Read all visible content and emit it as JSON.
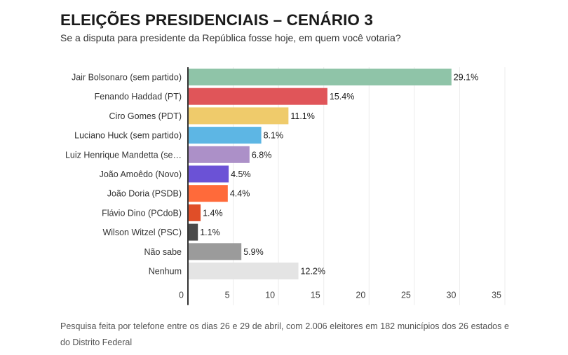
{
  "header": {
    "title": "ELEIÇÕES PRESIDENCIAIS – CENÁRIO 3",
    "subtitle": "Se a disputa para presidente da República fosse hoje, em quem você votaria?"
  },
  "footnote": "Pesquisa feita por telefone entre os dias 26 e 29 de abril, com 2.006 eleitores em 182 municípios dos 26 estados e do Distrito Federal",
  "chart_data": {
    "type": "bar",
    "orientation": "horizontal",
    "title": "ELEIÇÕES PRESIDENCIAIS – CENÁRIO 3",
    "subtitle": "Se a disputa para presidente da República fosse hoje, em quem você votaria?",
    "xlabel": "",
    "ylabel": "",
    "xlim": [
      0,
      35
    ],
    "xticks": [
      0,
      5,
      10,
      15,
      20,
      25,
      30,
      35
    ],
    "grid": true,
    "legend": "none",
    "value_suffix": "%",
    "categories": [
      "Jair Bolsonaro (sem partido)",
      "Fenando Haddad (PT)",
      "Ciro Gomes (PDT)",
      "Luciano Huck (sem partido)",
      "Luiz Henrique Mandetta (se…",
      "João Amoêdo (Novo)",
      "João Doria (PSDB)",
      "Flávio Dino (PCdoB)",
      "Wilson Witzel (PSC)",
      "Não sabe",
      "Nenhum"
    ],
    "values": [
      29.1,
      15.4,
      11.1,
      8.1,
      6.8,
      4.5,
      4.4,
      1.4,
      1.1,
      5.9,
      12.2
    ],
    "labels": [
      "29.1%",
      "15.4%",
      "11.1%",
      "8.1%",
      "6.8%",
      "4.5%",
      "4.4%",
      "1.4%",
      "1.1%",
      "5.9%",
      "12.2%"
    ],
    "colors": [
      "#8fc4a8",
      "#e05559",
      "#efcb6b",
      "#5db6e4",
      "#ac90c8",
      "#6b52d6",
      "#ff6a3a",
      "#e04e28",
      "#4a4a4a",
      "#9b9b9b",
      "#e4e4e4"
    ]
  }
}
